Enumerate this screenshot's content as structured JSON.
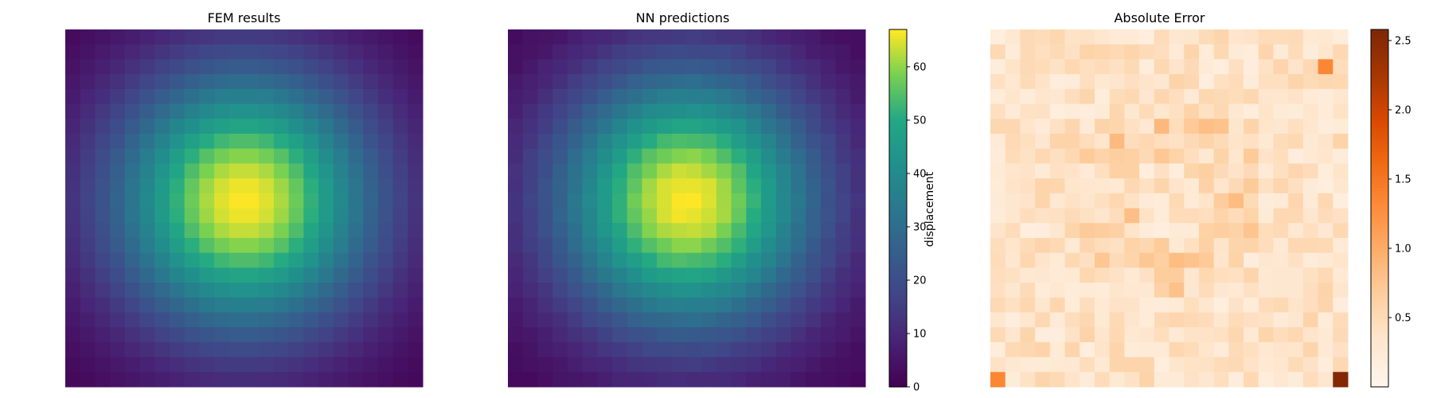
{
  "chart_data": [
    {
      "type": "heatmap",
      "title": "FEM results",
      "grid_size": [
        24,
        24
      ],
      "colormap": "viridis",
      "field": "peak ≈ 67 near column 12, row 11, falling to ≈ 0 at the corners",
      "vmin": 0,
      "vmax": 67,
      "axis_visible": false
    },
    {
      "type": "heatmap",
      "title": "NN predictions",
      "grid_size": [
        24,
        24
      ],
      "colormap": "viridis",
      "field": "peak ≈ 67 near column 12, row 11, falling to ≈ 0 at the corners",
      "vmin": 0,
      "vmax": 67,
      "axis_visible": false,
      "colorbar": {
        "label": "displacement",
        "ticks": [
          0,
          10,
          20,
          30,
          40,
          50,
          60
        ],
        "tick_labels": [
          "0",
          "10",
          "20",
          "30",
          "40",
          "50",
          "60"
        ],
        "range": [
          0,
          67
        ]
      }
    },
    {
      "type": "heatmap",
      "title": "Absolute Error",
      "grid_size": [
        24,
        24
      ],
      "colormap": "oranges",
      "vmin": 0.0,
      "vmax": 2.58,
      "axis_visible": false,
      "notable_cells": [
        {
          "col": 23,
          "row": 23,
          "value": 2.55
        },
        {
          "col": 0,
          "row": 23,
          "value": 1.35
        },
        {
          "col": 22,
          "row": 2,
          "value": 1.35
        }
      ],
      "colorbar": {
        "ticks": [
          0.5,
          1.0,
          1.5,
          2.0,
          2.5
        ],
        "tick_labels": [
          "0.5",
          "1.0",
          "1.5",
          "2.0",
          "2.5"
        ],
        "range": [
          0.0,
          2.58
        ]
      }
    }
  ]
}
